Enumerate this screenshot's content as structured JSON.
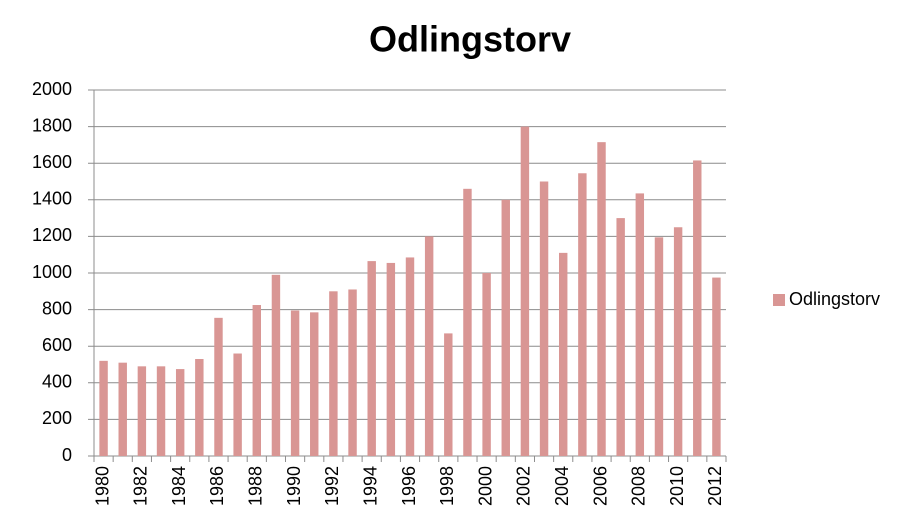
{
  "chart_data": {
    "type": "bar",
    "title": "Odlingstorv",
    "categories": [
      "1980",
      null,
      "1982",
      null,
      "1984",
      null,
      "1986",
      null,
      "1988",
      null,
      "1990",
      null,
      "1992",
      null,
      "1994",
      null,
      "1996",
      null,
      "1998",
      null,
      "2000",
      null,
      "2002",
      null,
      "2004",
      null,
      "2006",
      null,
      "2008",
      null,
      "2010",
      null,
      "2012"
    ],
    "series": [
      {
        "name": "Odlingstorv",
        "color": "#d99694",
        "values": [
          520,
          510,
          490,
          490,
          475,
          530,
          755,
          560,
          825,
          990,
          795,
          785,
          900,
          910,
          1065,
          1055,
          1085,
          1200,
          670,
          1460,
          1000,
          1400,
          1800,
          1500,
          1110,
          1545,
          1715,
          1300,
          1435,
          1195,
          1250,
          1615,
          975
        ]
      }
    ],
    "ylim": [
      0,
      2000
    ],
    "yticks": [
      0,
      200,
      400,
      600,
      800,
      1000,
      1200,
      1400,
      1600,
      1800,
      2000
    ],
    "grid": true,
    "legend": "right"
  }
}
